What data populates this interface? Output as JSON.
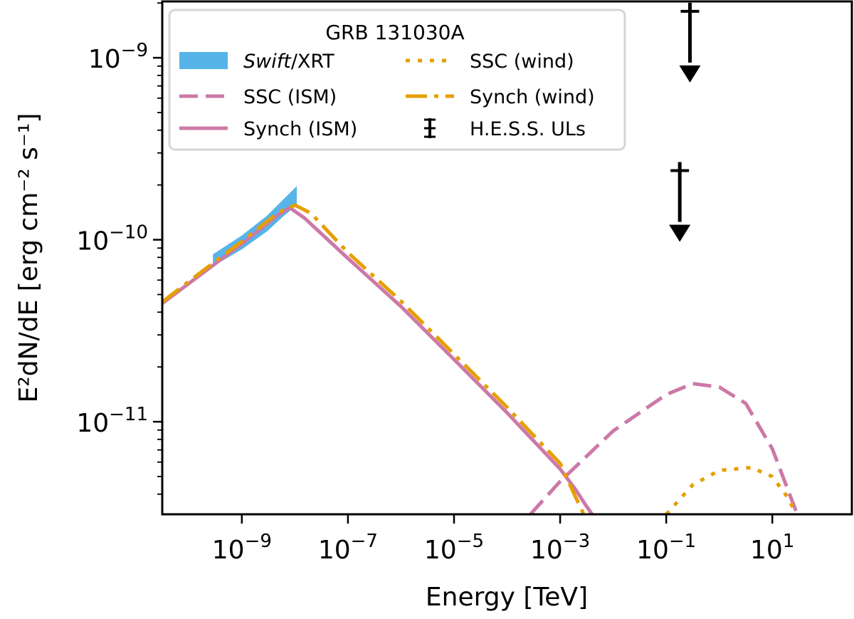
{
  "chart_data": {
    "type": "line",
    "title": "",
    "xlabel": "Energy [TeV]",
    "ylabel": "E²dN/dE [erg cm⁻² s⁻¹]",
    "xscale": "log",
    "yscale": "log",
    "xlim": [
      3.16e-11,
      316
    ],
    "ylim": [
      3.1e-12,
      2.04e-09
    ],
    "grid": false,
    "xticks": [
      {
        "value": 1e-09,
        "base": "10",
        "exp": "−9"
      },
      {
        "value": 1e-07,
        "base": "10",
        "exp": "−7"
      },
      {
        "value": 1e-05,
        "base": "10",
        "exp": "−5"
      },
      {
        "value": 0.001,
        "base": "10",
        "exp": "−3"
      },
      {
        "value": 0.1,
        "base": "10",
        "exp": "−1"
      },
      {
        "value": 10,
        "base": "10",
        "exp": "1"
      }
    ],
    "yticks": [
      {
        "value": 1e-09,
        "base": "10",
        "exp": "−9"
      },
      {
        "value": 1e-10,
        "base": "10",
        "exp": "−10"
      },
      {
        "value": 1e-11,
        "base": "10",
        "exp": "−11"
      }
    ],
    "legend": {
      "title": "GRB 131030A",
      "placement": "top-left",
      "columns": 2
    },
    "series": [
      {
        "name": "Swift/XRT",
        "kind": "band",
        "color": "#56B4E9",
        "x": [
          2.9e-10,
          1e-09,
          3e-09,
          6e-09,
          1.07e-08
        ],
        "upper": [
          8.3e-11,
          1.05e-10,
          1.35e-10,
          1.65e-10,
          1.95e-10
        ],
        "lower": [
          7.2e-11,
          8.9e-11,
          1.12e-10,
          1.35e-10,
          1.55e-10
        ]
      },
      {
        "name": "SSC (ISM)",
        "kind": "dashed",
        "color": "#CC79A7",
        "x": [
          0.000275,
          0.001,
          0.01,
          0.1,
          0.316,
          1,
          3.16,
          10,
          15.8,
          29.5
        ],
        "y": [
          3.1e-12,
          4.7e-12,
          8.9e-12,
          1.41e-11,
          1.62e-11,
          1.55e-11,
          1.26e-11,
          7.1e-12,
          5e-12,
          3.1e-12
        ]
      },
      {
        "name": "Synch (ISM)",
        "kind": "solid",
        "color": "#CC79A7",
        "x": [
          3.16e-11,
          1e-10,
          1e-09,
          5e-09,
          8e-09,
          1.5e-08,
          1e-07,
          1e-06,
          1e-05,
          0.0001,
          0.001,
          0.002,
          0.003,
          0.004
        ],
        "y": [
          4.47e-11,
          5.75e-11,
          9.5e-11,
          1.38e-10,
          1.5e-10,
          1.32e-10,
          7.9e-11,
          4.3e-11,
          2.2e-11,
          1.12e-11,
          5.5e-12,
          4.2e-12,
          3.5e-12,
          3.1e-12
        ]
      },
      {
        "name": "SSC (wind)",
        "kind": "dotted",
        "color": "#E69F00",
        "x": [
          0.1,
          0.316,
          1,
          4,
          10,
          20,
          28
        ],
        "y": [
          3.1e-12,
          4.5e-12,
          5.4e-12,
          5.6e-12,
          5e-12,
          3.8e-12,
          3.1e-12
        ]
      },
      {
        "name": "Synch (wind)",
        "kind": "dashdot",
        "color": "#E69F00",
        "x": [
          3.16e-11,
          1e-10,
          1e-09,
          5e-09,
          1e-08,
          2e-08,
          1e-07,
          1e-06,
          1e-05,
          0.0001,
          0.001,
          0.002,
          0.0028
        ],
        "y": [
          4.55e-11,
          5.9e-11,
          9.8e-11,
          1.42e-10,
          1.55e-10,
          1.4e-10,
          8.5e-11,
          4.6e-11,
          2.35e-11,
          1.2e-11,
          5.9e-12,
          3.8e-12,
          3.1e-12
        ]
      },
      {
        "name": "H.E.S.S. ULs",
        "kind": "upper_limits",
        "color": "#000000",
        "x": [
          0.28,
          0.18
        ],
        "y": [
          1.8e-09,
          2.4e-10
        ]
      }
    ]
  }
}
